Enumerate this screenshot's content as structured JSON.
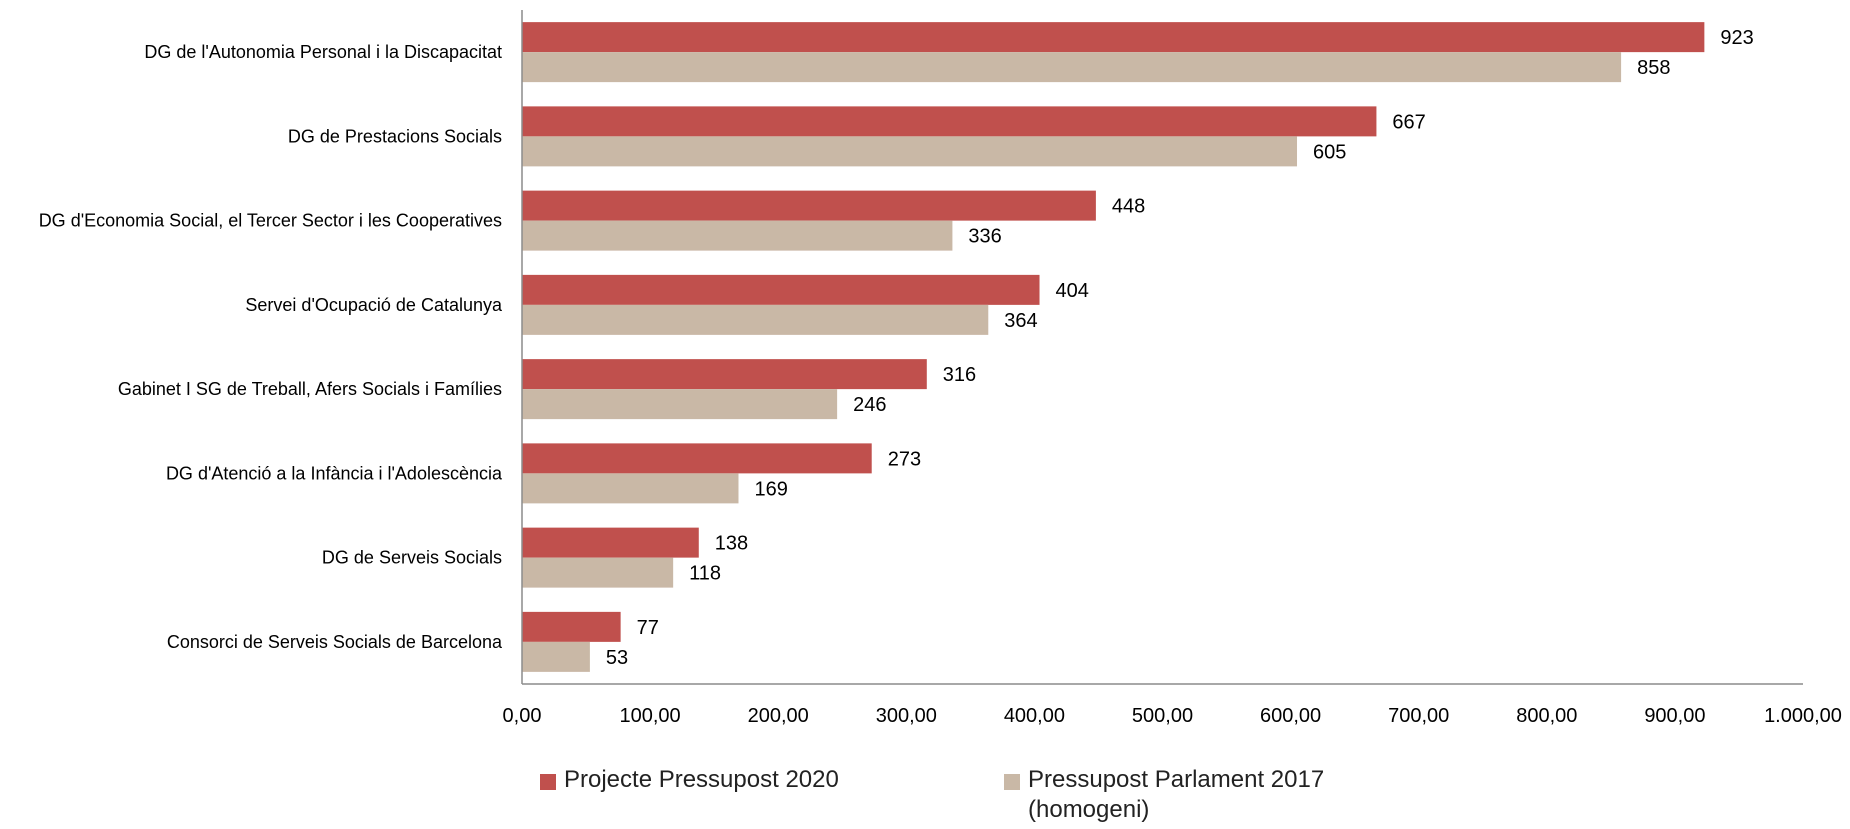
{
  "chart_data": {
    "type": "bar",
    "orientation": "horizontal",
    "categories": [
      "DG de l'Autonomia Personal i la Discapacitat",
      "DG de Prestacions Socials",
      "DG d'Economia Social, el Tercer Sector i les Cooperatives",
      "Servei d'Ocupació de Catalunya",
      "Gabinet I SG de Treball, Afers Socials i Famílies",
      "DG d'Atenció a la Infància i l'Adolescència",
      "DG de Serveis Socials",
      "Consorci de Serveis Socials de Barcelona"
    ],
    "series": [
      {
        "name": "Projecte Pressupost 2020",
        "color": "#c0504d",
        "values": [
          923,
          667,
          448,
          404,
          316,
          273,
          138,
          77
        ]
      },
      {
        "name": "Pressupost Parlament 2017 (homogeni)",
        "color": "#c9b8a6",
        "values": [
          858,
          605,
          336,
          364,
          246,
          169,
          118,
          53
        ]
      }
    ],
    "xlim": [
      0,
      1000
    ],
    "xticks": [
      0,
      100,
      200,
      300,
      400,
      500,
      600,
      700,
      800,
      900,
      1000
    ],
    "xtick_labels": [
      "0,00",
      "100,00",
      "200,00",
      "300,00",
      "400,00",
      "500,00",
      "600,00",
      "700,00",
      "800,00",
      "900,00",
      "1.000,00"
    ],
    "grid": false,
    "legend_position": "bottom"
  },
  "legend": {
    "items": [
      {
        "label": "Projecte Pressupost 2020",
        "color": "#c0504d"
      },
      {
        "label": "Pressupost Parlament 2017 (homogeni)",
        "color": "#c9b8a6"
      }
    ]
  }
}
